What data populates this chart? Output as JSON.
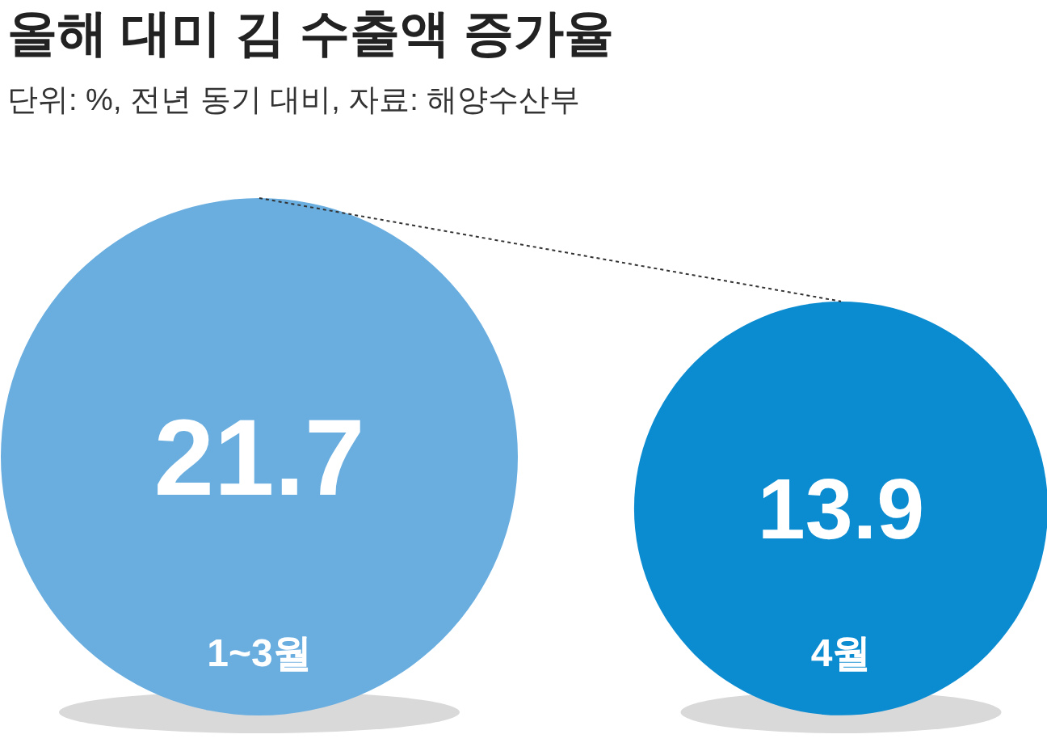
{
  "chart_data": {
    "type": "other",
    "title": "올해 대미 김 수출액 증가율",
    "subtitle": "단위: %, 전년 동기 대비, 자료: 해양수산부",
    "categories": [
      "1~3월",
      "4월"
    ],
    "values": [
      21.7,
      13.9
    ],
    "colors": [
      "#6aaee0",
      "#0b8bd0"
    ],
    "data_labels": true
  }
}
